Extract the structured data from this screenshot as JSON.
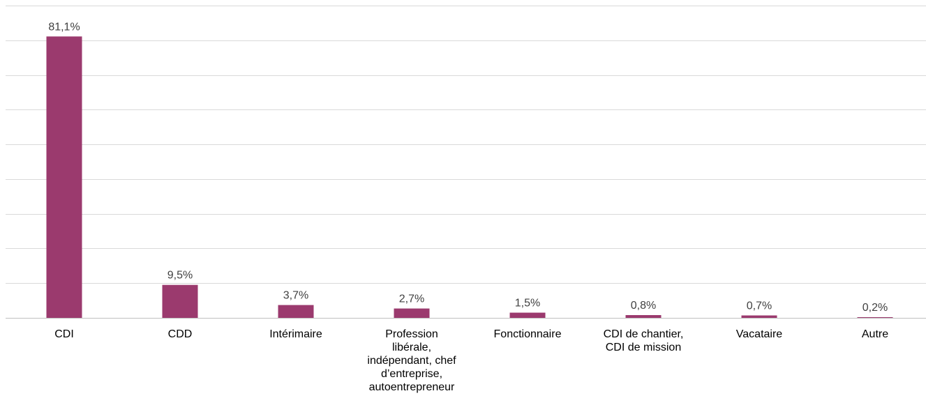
{
  "chart_data": {
    "type": "bar",
    "categories": [
      "CDI",
      "CDD",
      "Intérimaire",
      "Profession libérale, indépendant, chef d’entreprise, autoentrepreneur",
      "Fonctionnaire",
      "CDI de chantier, CDI de mission",
      "Vacataire",
      "Autre"
    ],
    "category_lines": [
      [
        "CDI"
      ],
      [
        "CDD"
      ],
      [
        "Intérimaire"
      ],
      [
        "Profession",
        "libérale,",
        "indépendant, chef",
        "d’entreprise,",
        "autoentrepreneur"
      ],
      [
        "Fonctionnaire"
      ],
      [
        "CDI de chantier,",
        "CDI de mission"
      ],
      [
        "Vacataire"
      ],
      [
        "Autre"
      ]
    ],
    "values": [
      81.1,
      9.5,
      3.7,
      2.7,
      1.5,
      0.8,
      0.7,
      0.2
    ],
    "value_labels": [
      "81,1%",
      "9,5%",
      "3,7%",
      "2,7%",
      "1,5%",
      "0,8%",
      "0,7%",
      "0,2%"
    ],
    "ylim": [
      0,
      90
    ],
    "y_gridline_step": 10,
    "grid": true,
    "bar_color": "#9b3a6e",
    "title": "",
    "xlabel": "",
    "ylabel": ""
  }
}
